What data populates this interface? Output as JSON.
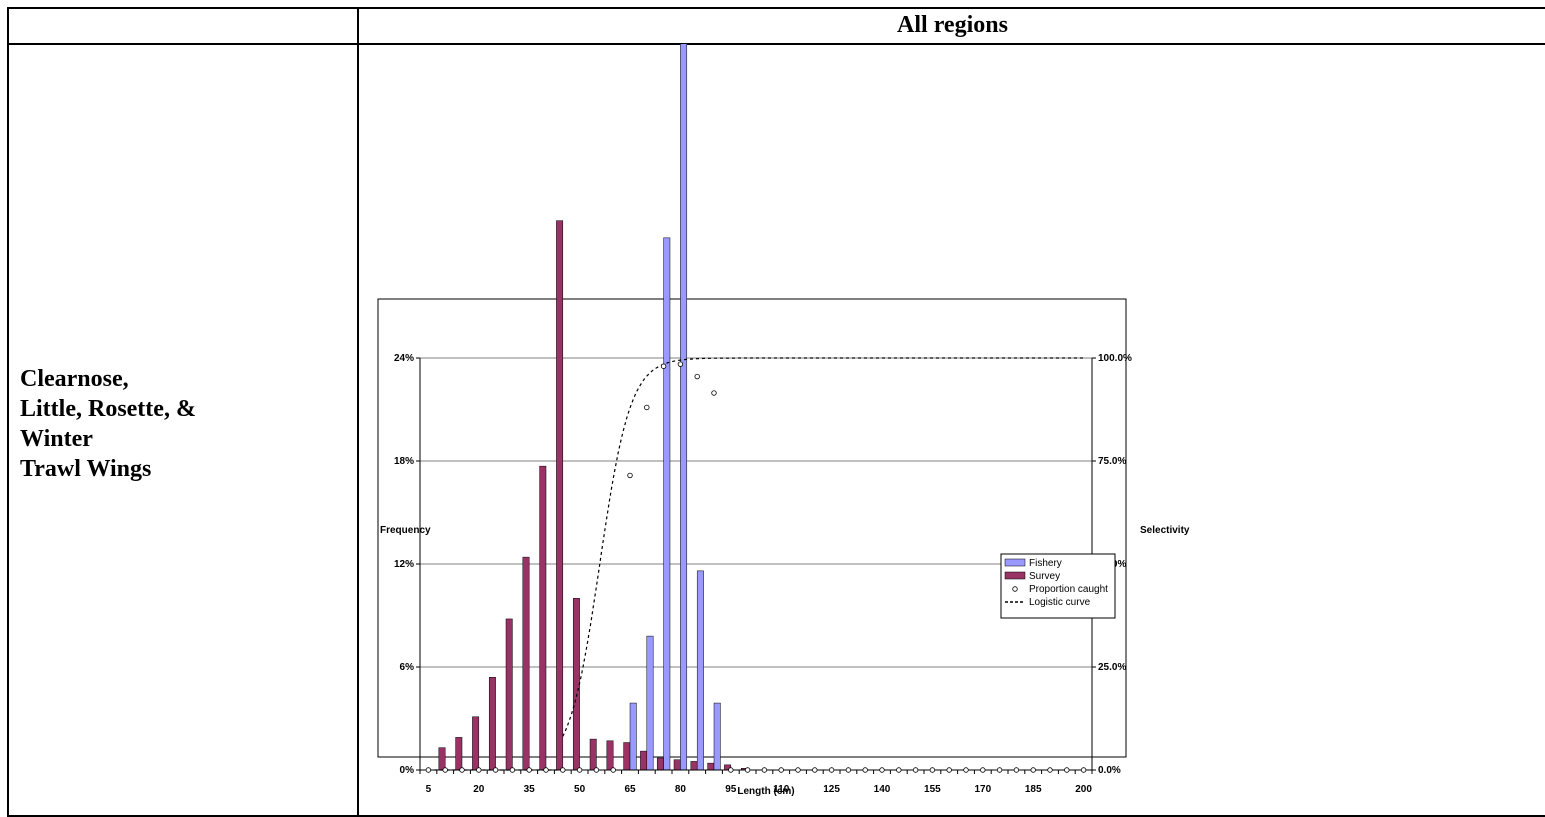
{
  "table": {
    "header_left": "",
    "header_right": "All regions",
    "species_label": "Clearnose,\nLittle, Rosette, &\nWinter\nTrawl Wings"
  },
  "chart_data": {
    "type": "bar",
    "title": "",
    "xlabel": "Length (cm)",
    "ylabel": "Frequency",
    "y2label": "Selectivity",
    "ylim": [
      0,
      0.24
    ],
    "y2lim": [
      0,
      1.0
    ],
    "yticks": [
      "0%",
      "6%",
      "12%",
      "18%",
      "24%"
    ],
    "y2ticks": [
      "0.0%",
      "25.0%",
      "50.0%",
      "75.0%",
      "100.0%"
    ],
    "x_tick_labels": [
      "5",
      "20",
      "35",
      "50",
      "65",
      "80",
      "95",
      "110",
      "125",
      "140",
      "155",
      "170",
      "185",
      "200"
    ],
    "categories": [
      5,
      10,
      15,
      20,
      25,
      30,
      35,
      40,
      45,
      50,
      55,
      60,
      65,
      70,
      75,
      80,
      85,
      90,
      95,
      100,
      105,
      110,
      115,
      120,
      125,
      130,
      135,
      140,
      145,
      150,
      155,
      160,
      165,
      170,
      175,
      180,
      185,
      190,
      195,
      200
    ],
    "grid": true,
    "legend_position": "right",
    "series": [
      {
        "name": "Fishery",
        "type": "bar",
        "color": "#9999ff",
        "values": [
          0,
          0,
          0,
          0,
          0,
          0,
          0,
          0,
          0,
          0,
          0,
          0,
          0.039,
          0.078,
          0.31,
          0.43,
          0.116,
          0.039,
          0,
          0,
          0,
          0,
          0,
          0,
          0,
          0,
          0,
          0,
          0,
          0,
          0,
          0,
          0,
          0,
          0,
          0,
          0,
          0,
          0,
          0
        ]
      },
      {
        "name": "Survey",
        "type": "bar",
        "color": "#993366",
        "values": [
          0,
          0.013,
          0.019,
          0.031,
          0.054,
          0.088,
          0.124,
          0.177,
          0.32,
          0.1,
          0.018,
          0.017,
          0.016,
          0.011,
          0.007,
          0.006,
          0.005,
          0.004,
          0.003,
          0.001,
          0,
          0,
          0,
          0,
          0,
          0,
          0,
          0,
          0,
          0,
          0,
          0,
          0,
          0,
          0,
          0,
          0,
          0,
          0,
          0
        ]
      },
      {
        "name": "Proportion caught",
        "type": "scatter",
        "values": [
          0,
          0,
          0,
          0,
          0,
          0,
          0,
          0,
          0,
          0,
          0,
          0,
          0.715,
          0.88,
          0.98,
          0.985,
          0.955,
          0.915,
          0,
          0,
          0,
          0,
          0,
          0,
          0,
          0,
          0,
          0,
          0,
          0,
          0,
          0,
          0,
          0,
          0,
          0,
          0,
          0,
          0,
          0
        ]
      },
      {
        "name": "Logistic curve",
        "type": "line",
        "style": "dotted",
        "logistic": {
          "x50": 56,
          "slope": 0.22,
          "start": 45
        }
      }
    ]
  }
}
